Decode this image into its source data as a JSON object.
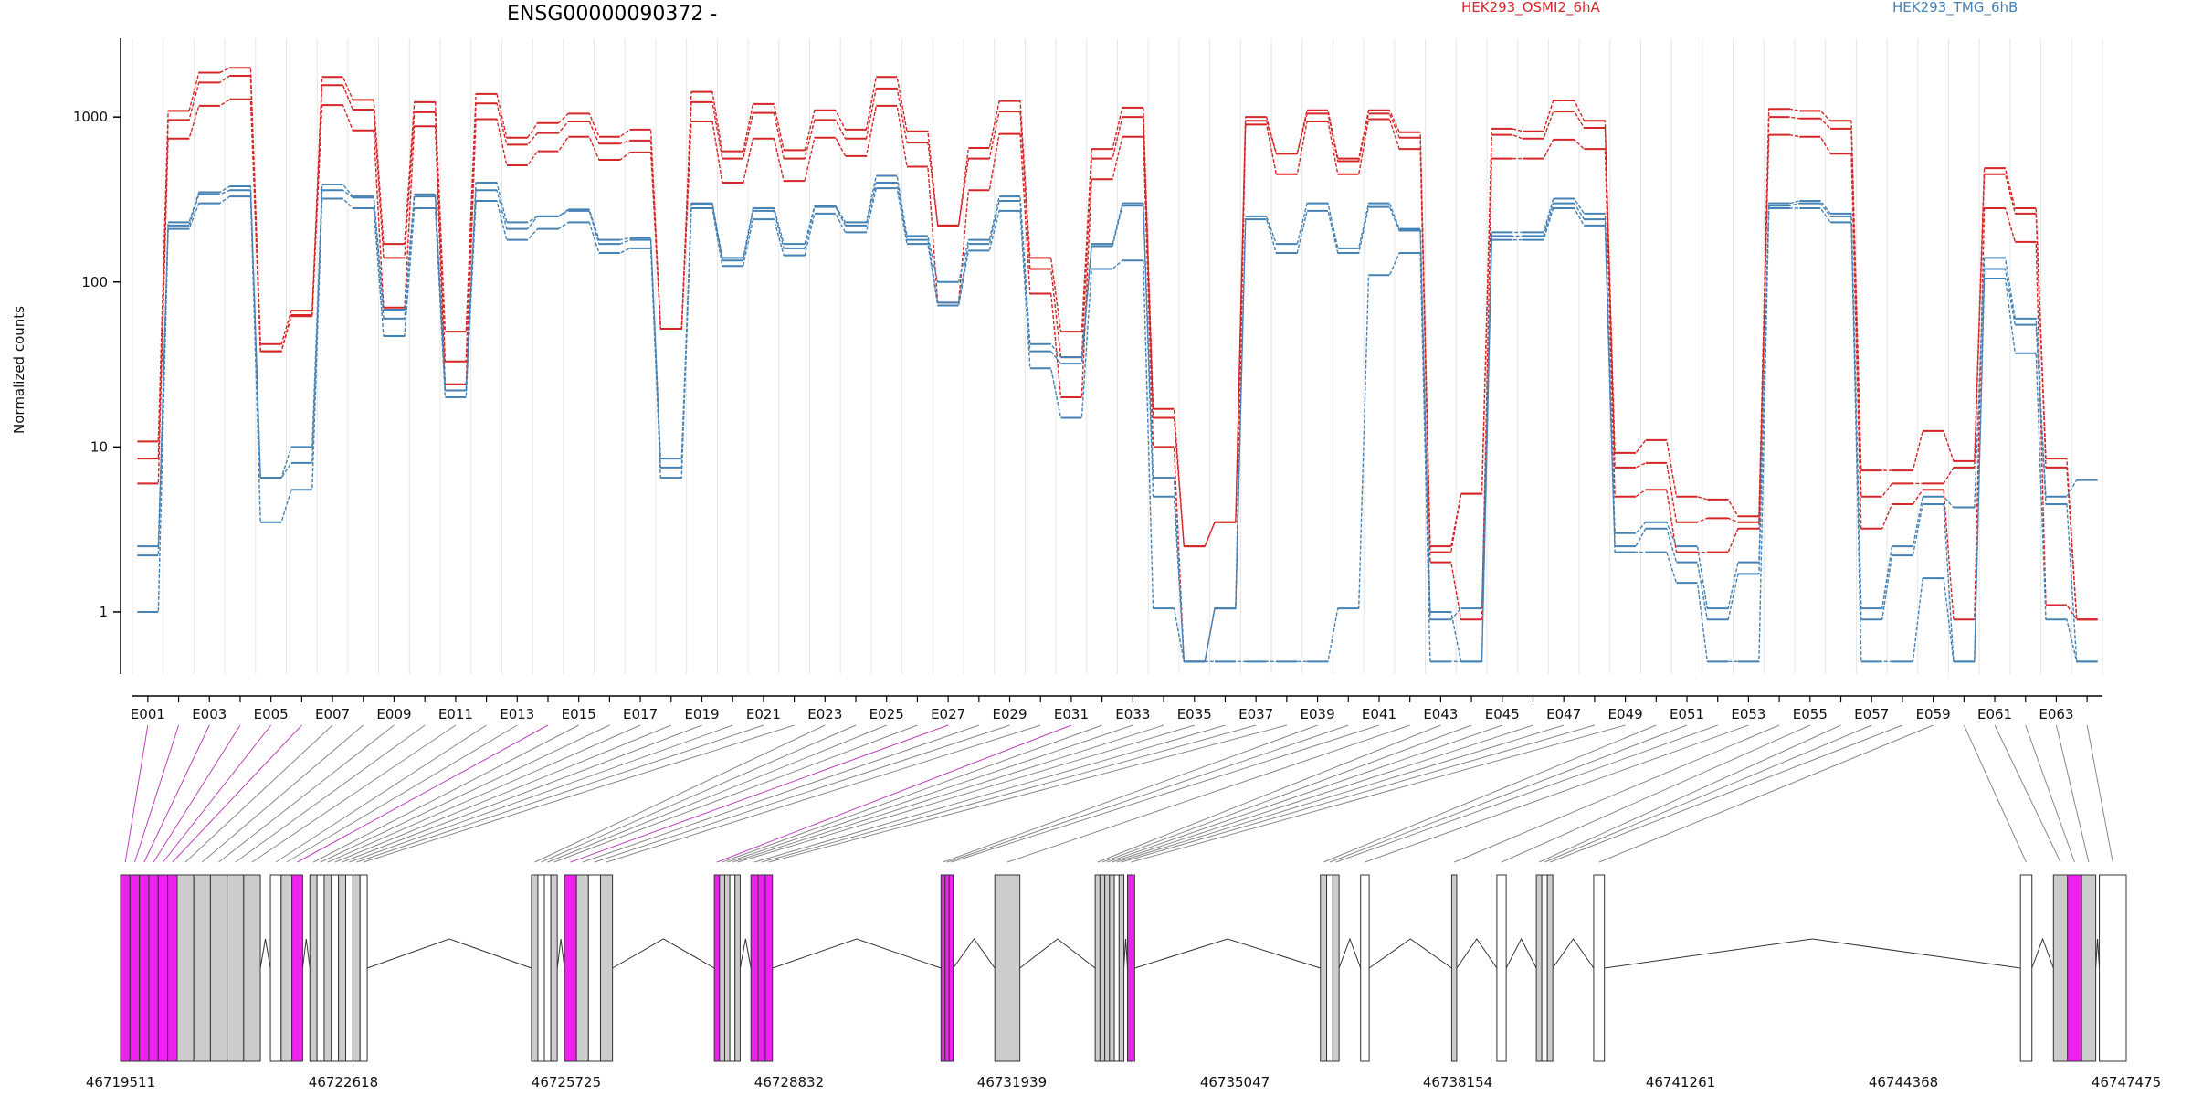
{
  "chart_data": {
    "type": "line",
    "title": "ENSG00000090372 -",
    "ylabel": "Normalized counts",
    "yscale": "log",
    "ylim": [
      0.42,
      3000
    ],
    "yticks": [
      "1",
      "10",
      "100",
      "1000"
    ],
    "legend": {
      "placement": "top-right"
    },
    "exons": [
      "E001",
      "E002",
      "E003",
      "E004",
      "E005",
      "E006",
      "E007",
      "E008",
      "E009",
      "E010",
      "E011",
      "E012",
      "E013",
      "E014",
      "E015",
      "E016",
      "E017",
      "E018",
      "E019",
      "E020",
      "E021",
      "E022",
      "E023",
      "E024",
      "E025",
      "E026",
      "E027",
      "E028",
      "E029",
      "E030",
      "E031",
      "E032",
      "E033",
      "E034",
      "E035",
      "E036",
      "E037",
      "E038",
      "E039",
      "E040",
      "E041",
      "E042",
      "E043",
      "E044",
      "E045",
      "E046",
      "E047",
      "E048",
      "E049",
      "E050",
      "E051",
      "E052",
      "E053",
      "E054",
      "E055",
      "E056",
      "E057",
      "E058",
      "E059",
      "E060",
      "E061",
      "E062",
      "E063",
      "E064"
    ],
    "series": [
      {
        "name": "HEK293_OSMI2_6hA",
        "color": "#d62728",
        "values": [
          10.8,
          1090,
          1860,
          1990,
          42,
          67,
          1750,
          1270,
          170,
          1230,
          50,
          1380,
          750,
          920,
          1050,
          760,
          840,
          52,
          1420,
          620,
          1200,
          630,
          1100,
          840,
          1750,
          820,
          220,
          650,
          1250,
          140,
          50,
          640,
          1140,
          17,
          2.5,
          3.5,
          1000,
          600,
          1100,
          560,
          1100,
          810,
          2.5,
          5.2,
          850,
          820,
          1260,
          950,
          9.2,
          11,
          5,
          4.8,
          3.8,
          1120,
          1090,
          950,
          7.2,
          7.2,
          12.5,
          8.2,
          490,
          280,
          8.5,
          0.9
        ]
      },
      {
        "name": "HEK293_OSMI2_6hA",
        "color": "#d62728",
        "values": [
          8.5,
          960,
          1620,
          1780,
          38,
          63,
          1560,
          1110,
          140,
          1070,
          33,
          1210,
          680,
          800,
          940,
          690,
          720,
          52,
          1230,
          560,
          1060,
          560,
          960,
          740,
          1490,
          700,
          220,
          560,
          1080,
          120,
          35,
          560,
          1000,
          15,
          2.5,
          3.5,
          950,
          600,
          1050,
          540,
          1050,
          750,
          2.3,
          5.2,
          780,
          740,
          1080,
          860,
          7.5,
          8,
          3.5,
          3.7,
          3.5,
          1000,
          980,
          850,
          5,
          6,
          6,
          7.5,
          450,
          260,
          7.5,
          0.9
        ]
      },
      {
        "name": "HEK293_OSMI2_6hA",
        "color": "#d62728",
        "values": [
          6,
          740,
          1170,
          1280,
          38,
          62,
          1180,
          830,
          70,
          880,
          24,
          970,
          510,
          620,
          760,
          550,
          610,
          52,
          940,
          400,
          740,
          410,
          750,
          580,
          1170,
          500,
          75,
          360,
          790,
          85,
          20,
          420,
          760,
          10,
          0.5,
          1.05,
          900,
          450,
          940,
          450,
          970,
          640,
          2,
          0.9,
          560,
          560,
          730,
          640,
          5,
          5.5,
          2.3,
          2.3,
          3.2,
          780,
          760,
          600,
          3.2,
          4.5,
          5.5,
          0.9,
          280,
          175,
          1.1,
          0.9
        ]
      },
      {
        "name": "HEK293_TMG_6hB",
        "color": "#4682b4",
        "values": [
          2.5,
          230,
          350,
          380,
          6.5,
          10,
          390,
          330,
          68,
          340,
          22,
          400,
          230,
          250,
          275,
          180,
          185,
          8.5,
          300,
          140,
          280,
          170,
          290,
          230,
          440,
          190,
          100,
          180,
          330,
          42,
          35,
          170,
          300,
          6.5,
          0.5,
          1.05,
          250,
          170,
          300,
          160,
          300,
          210,
          1,
          0.5,
          200,
          200,
          320,
          260,
          3,
          3.5,
          2.5,
          1.05,
          2,
          300,
          310,
          260,
          1.05,
          2.5,
          5,
          4.3,
          140,
          60,
          5,
          6.3
        ]
      },
      {
        "name": "HEK293_TMG_6hB",
        "color": "#4682b4",
        "values": [
          2.2,
          220,
          340,
          360,
          6.5,
          8,
          360,
          325,
          60,
          330,
          22,
          360,
          210,
          250,
          270,
          170,
          180,
          7.5,
          295,
          135,
          270,
          160,
          285,
          220,
          400,
          180,
          75,
          170,
          310,
          38,
          32,
          165,
          290,
          5,
          0.5,
          1.05,
          240,
          150,
          270,
          150,
          285,
          205,
          0.9,
          1.05,
          190,
          190,
          300,
          240,
          2.5,
          3.2,
          2,
          0.9,
          1.7,
          290,
          300,
          250,
          0.9,
          2.2,
          4.5,
          0.5,
          120,
          55,
          4.5,
          0.5
        ]
      },
      {
        "name": "HEK293_TMG_6hB",
        "color": "#4682b4",
        "values": [
          1,
          210,
          300,
          330,
          3.5,
          5.5,
          320,
          280,
          47,
          280,
          20,
          310,
          180,
          210,
          230,
          150,
          160,
          6.5,
          280,
          125,
          240,
          145,
          260,
          200,
          370,
          170,
          72,
          155,
          270,
          30,
          15,
          120,
          135,
          1.05,
          0.5,
          0.5,
          0.5,
          0.5,
          0.5,
          1.05,
          110,
          150,
          0.5,
          0.5,
          180,
          180,
          280,
          220,
          2.3,
          2.3,
          1.5,
          0.5,
          0.5,
          280,
          280,
          230,
          0.5,
          0.5,
          1.6,
          0.5,
          105,
          37,
          0.9,
          0.5
        ]
      }
    ],
    "genomic_axis": {
      "tick_labels": [
        "46719511",
        "46722618",
        "46725725",
        "46728832",
        "46731939",
        "46735047",
        "46738154",
        "46741261",
        "46744368",
        "46747475"
      ],
      "feature_order_note": ""
    }
  },
  "legend": {
    "items": [
      {
        "label": "HEK293_OSMI2_6hA",
        "color": "#d62728"
      },
      {
        "label": "HEK293_TMG_6hB",
        "color": "#4682b4"
      }
    ]
  }
}
